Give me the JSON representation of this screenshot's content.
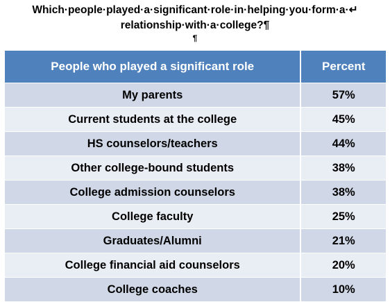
{
  "heading": {
    "line1": "Which·people·played·a·significant·role·in·helping·you·form·a·↵",
    "line2": "relationship·with·a·college?¶",
    "line3": "¶"
  },
  "chart_data": {
    "type": "table",
    "columns": [
      "People who played a significant role",
      "Percent"
    ],
    "rows": [
      {
        "role": "My parents",
        "percent": "57%"
      },
      {
        "role": "Current students at the college",
        "percent": "45%"
      },
      {
        "role": "HS counselors/teachers",
        "percent": "44%"
      },
      {
        "role": "Other college-bound students",
        "percent": "38%"
      },
      {
        "role": "College admission counselors",
        "percent": "38%"
      },
      {
        "role": "College faculty",
        "percent": "25%"
      },
      {
        "role": "Graduates/Alumni",
        "percent": "21%"
      },
      {
        "role": "College financial aid counselors",
        "percent": "20%"
      },
      {
        "role": "College coaches",
        "percent": "10%"
      }
    ]
  },
  "colors": {
    "header_bg": "#4f81bd",
    "row_odd_bg": "#d0d8e8",
    "row_even_bg": "#e9edf4"
  }
}
